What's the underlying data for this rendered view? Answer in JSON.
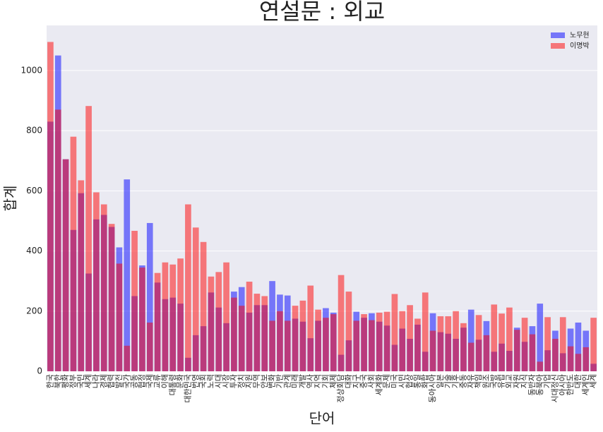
{
  "chart_data": {
    "type": "bar",
    "title": "연설문 : 외교",
    "xlabel": "단어",
    "ylabel": "합계",
    "categories": [
      "한국",
      "북한",
      "평화",
      "정부",
      "국민",
      "세계",
      "나라",
      "경제",
      "협력",
      "발전",
      "국가",
      "공동",
      "협정",
      "국제",
      "교류",
      "이해",
      "대통령",
      "문화",
      "대한민국",
      "번영",
      "국회",
      "노력",
      "시대",
      "시장",
      "투자",
      "정치",
      "지원",
      "무역",
      "안보",
      "변화",
      "기반",
      "관계",
      "미래",
      "개발",
      "역사",
      "지역",
      "기회",
      "체제",
      "정상회담",
      "대화",
      "지구",
      "중국",
      "사회",
      "세계화",
      "문제",
      "미국",
      "시민",
      "협상",
      "통일",
      "화합",
      "동아시아",
      "일본",
      "기술",
      "기후",
      "중동",
      "자유",
      "책임",
      "원조",
      "국방",
      "유럽",
      "외교",
      "자원",
      "지식",
      "동반자",
      "동북아",
      "기업",
      "시대정신",
      "아시아",
      "한반도",
      "대한",
      "세계인",
      "세계"
    ],
    "series": [
      {
        "name": "노무현",
        "color": "#0000ff",
        "values": [
          830,
          1050,
          705,
          470,
          592,
          325,
          505,
          520,
          480,
          412,
          638,
          250,
          352,
          493,
          295,
          240,
          245,
          225,
          45,
          120,
          150,
          262,
          212,
          160,
          265,
          280,
          195,
          220,
          220,
          300,
          255,
          252,
          175,
          165,
          110,
          168,
          210,
          195,
          55,
          103,
          198,
          178,
          193,
          165,
          152,
          88,
          142,
          108,
          155,
          65,
          193,
          130,
          125,
          108,
          145,
          205,
          105,
          167,
          65,
          92,
          68,
          145,
          98,
          150,
          225,
          70,
          135,
          60,
          142,
          162,
          135,
          25
        ]
      },
      {
        "name": "이명박",
        "color": "#ff0000",
        "values": [
          1095,
          870,
          705,
          780,
          635,
          882,
          595,
          555,
          490,
          358,
          85,
          467,
          345,
          162,
          327,
          362,
          355,
          375,
          555,
          478,
          430,
          315,
          330,
          362,
          245,
          218,
          298,
          258,
          250,
          168,
          200,
          168,
          218,
          235,
          285,
          205,
          178,
          190,
          320,
          265,
          168,
          190,
          170,
          195,
          198,
          257,
          200,
          220,
          175,
          262,
          135,
          183,
          183,
          200,
          160,
          95,
          187,
          120,
          222,
          192,
          212,
          138,
          178,
          123,
          32,
          180,
          108,
          180,
          83,
          58,
          80,
          178
        ]
      }
    ],
    "ylim": [
      0,
      1150
    ],
    "yticks": [
      0,
      200,
      400,
      600,
      800,
      1000
    ],
    "grid": true,
    "legend": "upper right"
  }
}
